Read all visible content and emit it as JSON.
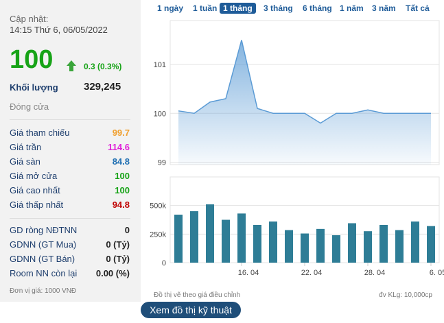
{
  "panel": {
    "update_label": "Cập nhật:",
    "update_time": "14:15 Thứ 6, 06/05/2022",
    "price": "100",
    "price_color": "#17a317",
    "change": "0.3 (0.3%)",
    "volume_label": "Khối lượng",
    "volume": "329,245",
    "status": "Đóng cửa",
    "rows": [
      {
        "label": "Giá tham chiếu",
        "value": "99.7",
        "color": "#f0a030"
      },
      {
        "label": "Giá trần",
        "value": "114.6",
        "color": "#e020d8"
      },
      {
        "label": "Giá sàn",
        "value": "84.8",
        "color": "#1f6fb2"
      },
      {
        "label": "Giá mở cửa",
        "value": "100",
        "color": "#17a317"
      },
      {
        "label": "Giá cao nhất",
        "value": "100",
        "color": "#17a317"
      },
      {
        "label": "Giá thấp nhất",
        "value": "94.8",
        "color": "#c00000"
      }
    ],
    "foreign": [
      {
        "label": "GD ròng NĐTNN",
        "value": "0"
      },
      {
        "label": "GDNN (GT Mua)",
        "value": "0 (Tỷ)"
      },
      {
        "label": "GDNN (GT Bán)",
        "value": "0 (Tỷ)"
      },
      {
        "label": "Room NN còn lại",
        "value": "0.00 (%)"
      }
    ],
    "unit_note": "Đơn vị giá: 1000 VNĐ"
  },
  "tabs": {
    "items": [
      "1 ngày",
      "1 tuần",
      "1 tháng",
      "3 tháng",
      "6 tháng",
      "1 năm",
      "3 năm",
      "Tất cả"
    ],
    "active": 2
  },
  "chart_data": [
    {
      "type": "area",
      "color": "#5b9bd5",
      "values": [
        100.05,
        100.0,
        100.23,
        100.3,
        101.5,
        100.1,
        100.0,
        100.0,
        100.0,
        99.8,
        100.0,
        100.0,
        100.07,
        100.0,
        100.0,
        100.0,
        100.0
      ],
      "ylim": [
        98.95,
        101.9
      ],
      "yticks": [
        99,
        100,
        101
      ],
      "grid": true
    },
    {
      "type": "bar",
      "color": "#2e7d96",
      "categories": [
        null,
        null,
        null,
        null,
        "16. 04",
        null,
        null,
        null,
        "22. 04",
        null,
        null,
        null,
        "28. 04",
        null,
        null,
        null,
        "6. 05"
      ],
      "values": [
        420000,
        450000,
        510000,
        375000,
        430000,
        330000,
        360000,
        285000,
        255000,
        295000,
        240000,
        345000,
        275000,
        330000,
        285000,
        360000,
        320000
      ],
      "ylim": [
        0,
        750000
      ],
      "yticks": [
        0,
        {
          "value": 250000,
          "label": "250k"
        },
        {
          "value": 500000,
          "label": "500k"
        }
      ],
      "grid": true,
      "note_left": "Đồ thị vẽ theo giá điều chỉnh",
      "note_right": "đv KLg: 10,000cp"
    }
  ],
  "button": "Xem đồ thị kỹ thuật"
}
